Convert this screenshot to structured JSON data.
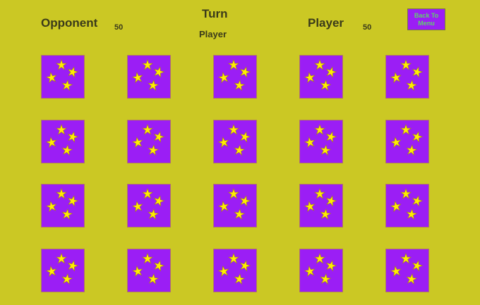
{
  "header": {
    "opponent_label": "Opponent",
    "opponent_score": "50",
    "turn_label": "Turn",
    "turn_value": "Player",
    "player_label": "Player",
    "player_score": "50",
    "back_button_line1": "Back To",
    "back_button_line2": "Menu"
  },
  "board": {
    "rows": 4,
    "columns": 5,
    "card_state": "face-down",
    "card_back_icon": "four-stars",
    "colors": {
      "background": "#cbc824",
      "card": "#9b1ef5",
      "star": "#ffee00",
      "button_text": "#5fd36a"
    }
  }
}
